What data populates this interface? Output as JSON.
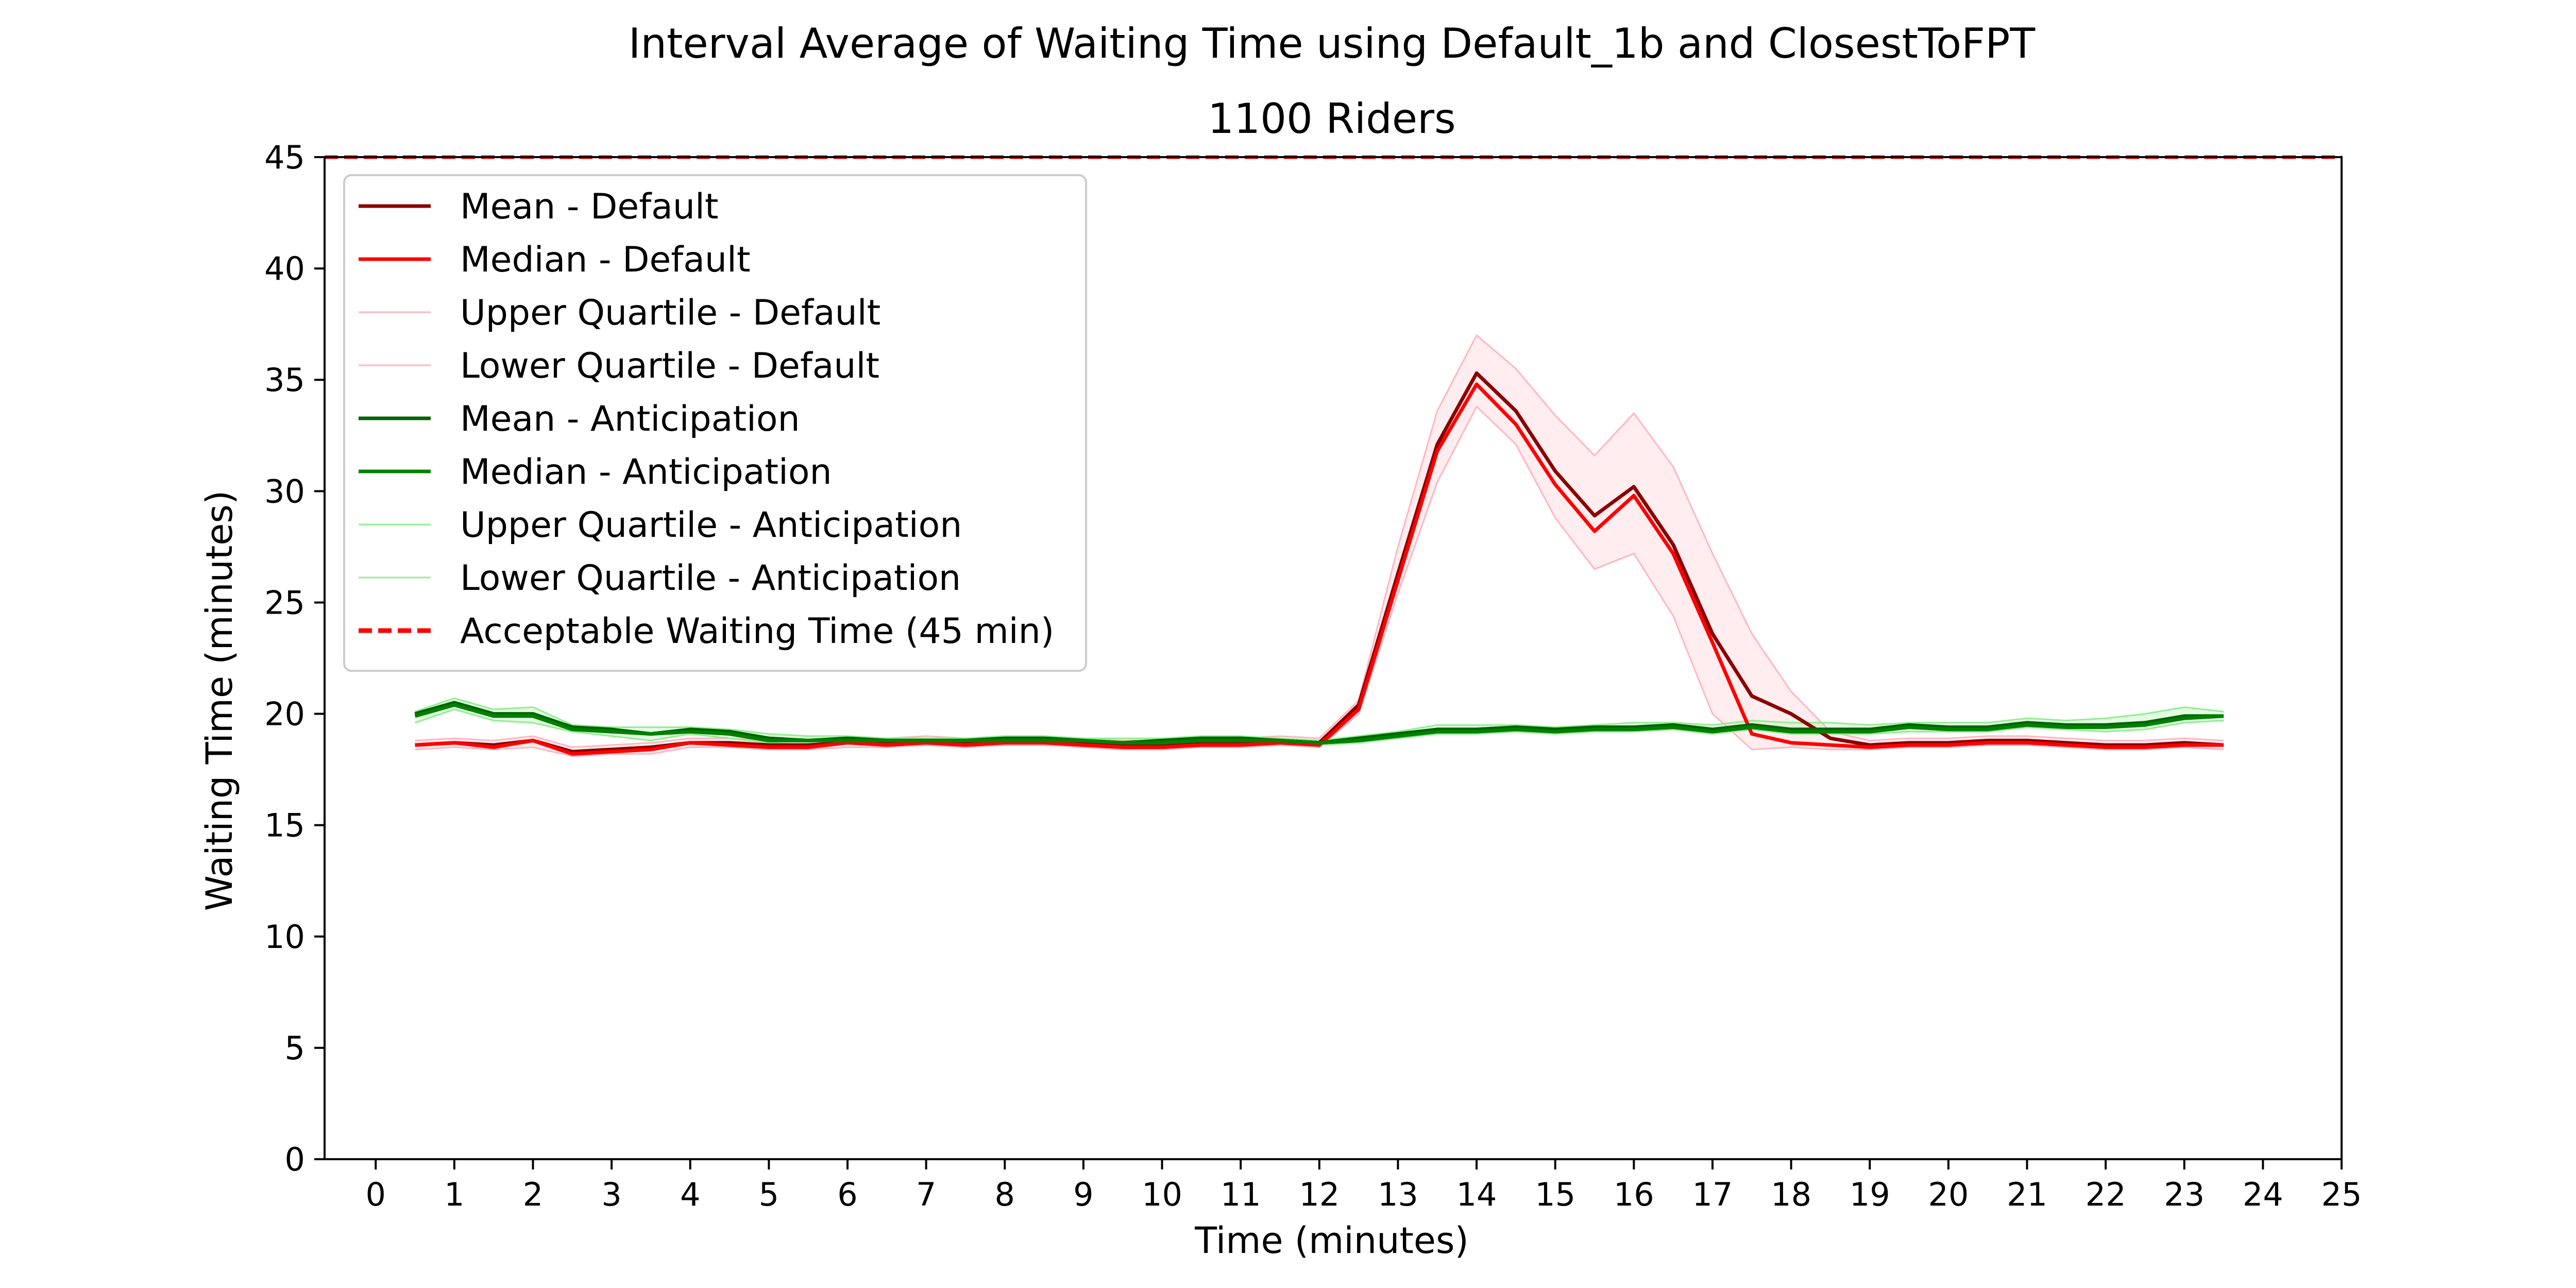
{
  "chart_data": {
    "type": "line",
    "title": "Interval Average of Waiting Time using Default_1b and ClosestToFPT",
    "subtitle": "1100 Riders",
    "xlabel": "Time (minutes)",
    "ylabel": "Waiting Time (minutes)",
    "xlim": [
      -0.65,
      25
    ],
    "ylim": [
      0,
      45
    ],
    "xticks": [
      0,
      1,
      2,
      3,
      4,
      5,
      6,
      7,
      8,
      9,
      10,
      11,
      12,
      13,
      14,
      15,
      16,
      17,
      18,
      19,
      20,
      21,
      22,
      23,
      24,
      25
    ],
    "yticks": [
      0,
      5,
      10,
      15,
      20,
      25,
      30,
      35,
      40,
      45
    ],
    "grid": false,
    "legend_position": "top-left",
    "x": [
      0.5,
      1,
      1.5,
      2,
      2.5,
      3,
      3.5,
      4,
      4.5,
      5,
      5.5,
      6,
      6.5,
      7,
      7.5,
      8,
      8.5,
      9,
      9.5,
      10,
      10.5,
      11,
      11.5,
      12,
      12.5,
      13,
      13.5,
      14,
      14.5,
      15,
      15.5,
      16,
      16.5,
      17,
      17.5,
      18,
      18.5,
      19,
      19.5,
      20,
      20.5,
      21,
      21.5,
      22,
      22.5,
      23,
      23.5
    ],
    "series": [
      {
        "name": "Mean - Default",
        "color": "#8b0000",
        "stroke_width": 7,
        "values": [
          18.6,
          18.7,
          18.6,
          18.8,
          18.3,
          18.4,
          18.5,
          18.7,
          18.7,
          18.6,
          18.6,
          18.7,
          18.7,
          18.8,
          18.7,
          18.8,
          18.8,
          18.7,
          18.6,
          18.6,
          18.7,
          18.7,
          18.8,
          18.7,
          20.4,
          26.3,
          32.1,
          35.3,
          33.6,
          30.9,
          28.9,
          30.2,
          27.6,
          23.6,
          20.8,
          20.0,
          18.9,
          18.6,
          18.7,
          18.7,
          18.8,
          18.8,
          18.7,
          18.6,
          18.6,
          18.7,
          18.6
        ]
      },
      {
        "name": "Median - Default",
        "color": "#ff0000",
        "stroke_width": 7,
        "values": [
          18.6,
          18.7,
          18.5,
          18.8,
          18.2,
          18.3,
          18.4,
          18.7,
          18.6,
          18.5,
          18.5,
          18.7,
          18.6,
          18.7,
          18.6,
          18.7,
          18.7,
          18.6,
          18.5,
          18.5,
          18.6,
          18.6,
          18.7,
          18.6,
          20.2,
          26.0,
          31.8,
          34.8,
          33.0,
          30.3,
          28.2,
          29.8,
          27.2,
          23.2,
          19.1,
          18.7,
          18.6,
          18.5,
          18.6,
          18.6,
          18.7,
          18.7,
          18.6,
          18.5,
          18.5,
          18.6,
          18.6
        ]
      },
      {
        "name": "Upper Quartile - Default",
        "color": "#ffb6c1",
        "stroke_width": 3,
        "fill_band": "Lower Quartile - Default",
        "values": [
          18.8,
          18.9,
          18.8,
          19.0,
          18.5,
          18.6,
          18.7,
          18.9,
          18.9,
          18.8,
          18.8,
          18.9,
          18.9,
          19.0,
          18.9,
          19.0,
          19.0,
          18.9,
          18.8,
          18.8,
          18.9,
          18.9,
          19.0,
          18.9,
          20.6,
          27.5,
          33.6,
          37.0,
          35.5,
          33.4,
          31.6,
          33.5,
          31.1,
          27.2,
          23.6,
          21.0,
          19.2,
          18.8,
          18.9,
          18.9,
          19.0,
          19.0,
          18.9,
          18.8,
          18.8,
          18.9,
          18.8
        ]
      },
      {
        "name": "Lower Quartile - Default",
        "color": "#ffb6c1",
        "stroke_width": 3,
        "values": [
          18.4,
          18.5,
          18.4,
          18.5,
          18.1,
          18.2,
          18.2,
          18.5,
          18.5,
          18.4,
          18.4,
          18.5,
          18.5,
          18.6,
          18.5,
          18.6,
          18.6,
          18.5,
          18.4,
          18.4,
          18.5,
          18.5,
          18.6,
          18.5,
          20.0,
          25.4,
          30.4,
          33.8,
          32.1,
          28.8,
          26.5,
          27.2,
          24.4,
          20.0,
          18.4,
          18.5,
          18.4,
          18.4,
          18.5,
          18.5,
          18.6,
          18.6,
          18.5,
          18.4,
          18.4,
          18.5,
          18.4
        ]
      },
      {
        "name": "Mean - Anticipation",
        "color": "#006400",
        "stroke_width": 7,
        "values": [
          20.0,
          20.5,
          20.0,
          20.0,
          19.4,
          19.3,
          19.1,
          19.3,
          19.2,
          18.9,
          18.8,
          18.9,
          18.8,
          18.8,
          18.8,
          18.9,
          18.9,
          18.8,
          18.7,
          18.8,
          18.9,
          18.9,
          18.8,
          18.7,
          18.9,
          19.1,
          19.3,
          19.3,
          19.4,
          19.3,
          19.4,
          19.4,
          19.5,
          19.3,
          19.5,
          19.3,
          19.3,
          19.3,
          19.5,
          19.4,
          19.4,
          19.6,
          19.5,
          19.5,
          19.6,
          19.9,
          19.9
        ]
      },
      {
        "name": "Median - Anticipation",
        "color": "#008000",
        "stroke_width": 7,
        "values": [
          19.9,
          20.4,
          19.9,
          19.9,
          19.3,
          19.2,
          19.1,
          19.2,
          19.1,
          18.8,
          18.8,
          18.8,
          18.8,
          18.8,
          18.8,
          18.8,
          18.8,
          18.8,
          18.7,
          18.7,
          18.8,
          18.8,
          18.8,
          18.7,
          18.8,
          19.0,
          19.2,
          19.2,
          19.3,
          19.2,
          19.3,
          19.3,
          19.4,
          19.2,
          19.4,
          19.2,
          19.2,
          19.2,
          19.4,
          19.3,
          19.3,
          19.5,
          19.4,
          19.4,
          19.5,
          19.8,
          19.9
        ]
      },
      {
        "name": "Upper Quartile - Anticipation",
        "color": "#90ee90",
        "stroke_width": 3,
        "fill_band": "Lower Quartile - Anticipation",
        "values": [
          20.1,
          20.7,
          20.2,
          20.3,
          19.5,
          19.4,
          19.4,
          19.4,
          19.3,
          19.1,
          19.0,
          19.0,
          18.9,
          18.9,
          18.9,
          19.0,
          19.0,
          18.9,
          18.9,
          18.9,
          19.0,
          19.0,
          18.9,
          18.8,
          19.0,
          19.2,
          19.5,
          19.5,
          19.5,
          19.4,
          19.5,
          19.6,
          19.6,
          19.5,
          19.7,
          19.6,
          19.6,
          19.5,
          19.6,
          19.6,
          19.6,
          19.8,
          19.7,
          19.8,
          20.0,
          20.3,
          20.1
        ]
      },
      {
        "name": "Lower Quartile - Anticipation",
        "color": "#90ee90",
        "stroke_width": 3,
        "values": [
          19.6,
          20.2,
          19.7,
          19.6,
          19.2,
          19.0,
          18.8,
          19.1,
          18.9,
          18.7,
          18.6,
          18.7,
          18.7,
          18.7,
          18.7,
          18.7,
          18.7,
          18.6,
          18.6,
          18.6,
          18.7,
          18.7,
          18.7,
          18.6,
          18.7,
          18.9,
          19.1,
          19.1,
          19.2,
          19.1,
          19.2,
          19.2,
          19.3,
          19.1,
          19.3,
          19.1,
          19.1,
          19.1,
          19.2,
          19.2,
          19.2,
          19.4,
          19.3,
          19.2,
          19.3,
          19.6,
          19.7
        ]
      }
    ],
    "reference_lines": [
      {
        "name": "Acceptable Waiting Time (45 min)",
        "y": 45,
        "color": "#ff0000",
        "stroke_width": 7,
        "dashed": true
      }
    ]
  }
}
